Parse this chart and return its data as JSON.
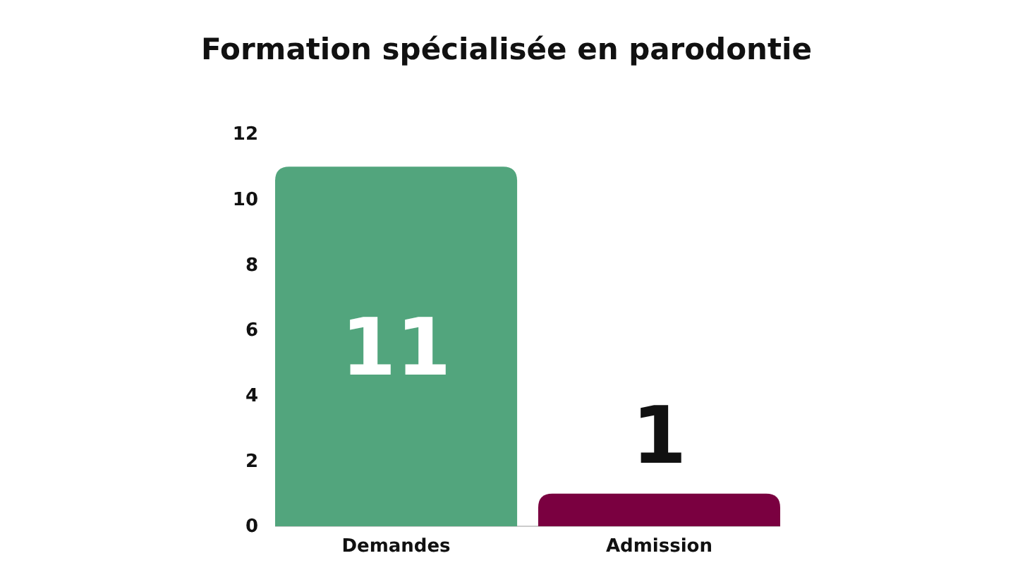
{
  "chart_data": {
    "type": "bar",
    "title": "Formation spécialisée en parodontie",
    "categories": [
      "Demandes",
      "Admission"
    ],
    "values": [
      11,
      1
    ],
    "colors": [
      "#52a57d",
      "#7a0040"
    ],
    "ylim": [
      0,
      12
    ],
    "yticks": [
      0,
      2,
      4,
      6,
      8,
      10,
      12
    ],
    "grid": false,
    "data_labels": true
  }
}
